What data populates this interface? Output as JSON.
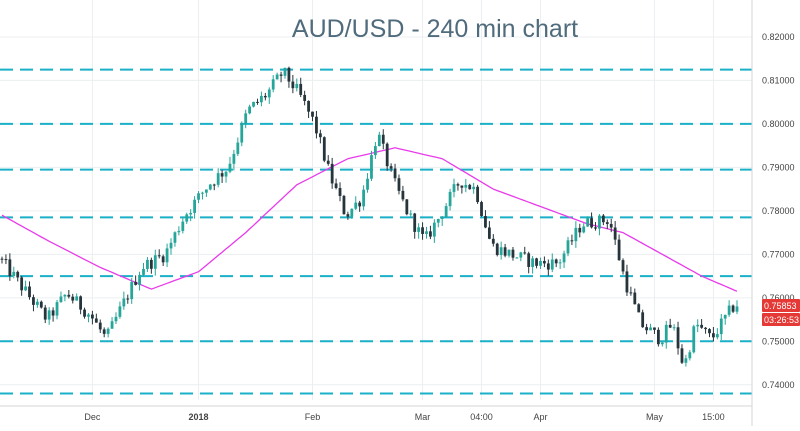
{
  "chart_data": {
    "type": "candlestick",
    "title": "AUD/USD - 240 min chart",
    "xlabel": "",
    "ylabel": "",
    "ylim": [
      0.7365,
      0.8285
    ],
    "y_ticks": [
      "0.82000",
      "0.81000",
      "0.80000",
      "0.79000",
      "0.78000",
      "0.77000",
      "0.76000",
      "0.75000",
      "0.74000"
    ],
    "y_tick_values": [
      0.82,
      0.81,
      0.8,
      0.79,
      0.78,
      0.77,
      0.76,
      0.75,
      0.74
    ],
    "x_ticks": [
      "Dec",
      "2018",
      "Feb",
      "Mar",
      "04:00",
      "Apr",
      "May",
      "15:00"
    ],
    "x_tick_index": [
      23,
      50,
      79,
      107,
      122,
      137,
      166,
      181
    ],
    "n_bars": 188,
    "horizontal_levels": [
      0.8125,
      0.8,
      0.7895,
      0.7785,
      0.765,
      0.75,
      0.738
    ],
    "price_path": [
      [
        0,
        0.769
      ],
      [
        6,
        0.762
      ],
      [
        12,
        0.755
      ],
      [
        17,
        0.761
      ],
      [
        23,
        0.756
      ],
      [
        27,
        0.7505
      ],
      [
        31,
        0.758
      ],
      [
        36,
        0.767
      ],
      [
        42,
        0.77
      ],
      [
        47,
        0.779
      ],
      [
        53,
        0.786
      ],
      [
        58,
        0.79
      ],
      [
        63,
        0.803
      ],
      [
        68,
        0.807
      ],
      [
        72,
        0.812
      ],
      [
        76,
        0.807
      ],
      [
        80,
        0.8
      ],
      [
        84,
        0.788
      ],
      [
        88,
        0.779
      ],
      [
        92,
        0.783
      ],
      [
        96,
        0.798
      ],
      [
        100,
        0.787
      ],
      [
        104,
        0.779
      ],
      [
        108,
        0.773
      ],
      [
        112,
        0.779
      ],
      [
        117,
        0.787
      ],
      [
        121,
        0.785
      ],
      [
        125,
        0.772
      ],
      [
        130,
        0.77
      ],
      [
        136,
        0.768
      ],
      [
        142,
        0.768
      ],
      [
        148,
        0.777
      ],
      [
        155,
        0.778
      ],
      [
        159,
        0.764
      ],
      [
        163,
        0.754
      ],
      [
        168,
        0.7505
      ],
      [
        171,
        0.754
      ],
      [
        174,
        0.744
      ],
      [
        177,
        0.754
      ],
      [
        181,
        0.7505
      ],
      [
        185,
        0.756
      ],
      [
        187,
        0.7585
      ]
    ],
    "ma_path": [
      [
        0,
        0.779
      ],
      [
        12,
        0.773
      ],
      [
        25,
        0.767
      ],
      [
        38,
        0.762
      ],
      [
        50,
        0.766
      ],
      [
        62,
        0.775
      ],
      [
        75,
        0.786
      ],
      [
        88,
        0.792
      ],
      [
        100,
        0.7945
      ],
      [
        112,
        0.792
      ],
      [
        125,
        0.785
      ],
      [
        137,
        0.781
      ],
      [
        149,
        0.777
      ],
      [
        158,
        0.775
      ],
      [
        168,
        0.77
      ],
      [
        178,
        0.765
      ],
      [
        187,
        0.7615
      ]
    ],
    "price_label": "0.75853",
    "countdown_label": "03:26:53",
    "grid": true,
    "legend": "none",
    "colors": {
      "up": "#26a69a",
      "down": "#26343b",
      "ma": "#e83aeb",
      "level_line": "#1ab0c8",
      "price_tag": "#e53935",
      "title": "#4f6b7c"
    }
  }
}
